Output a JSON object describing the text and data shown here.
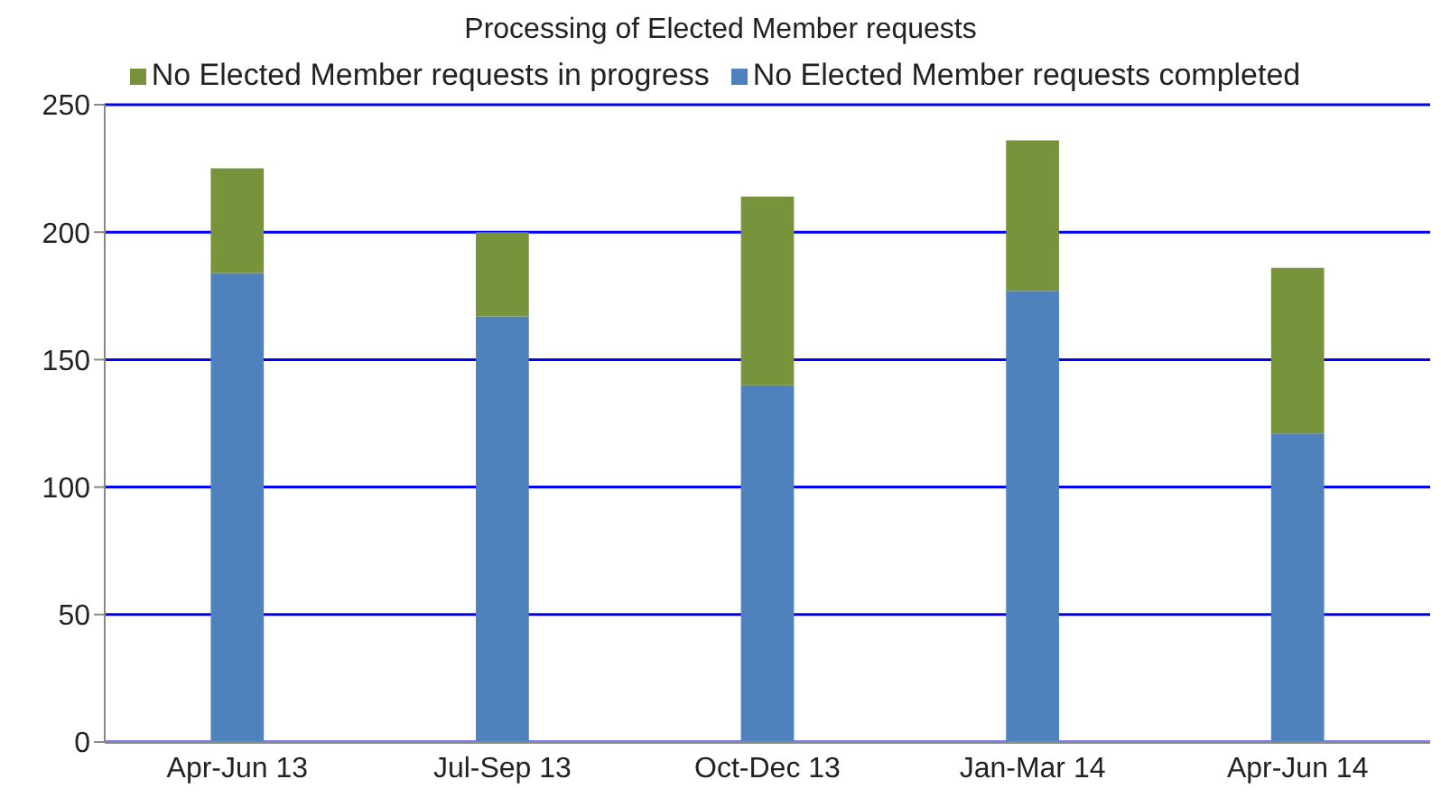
{
  "chart_data": {
    "type": "bar",
    "title": "Processing of Elected Member requests",
    "categories": [
      "Apr-Jun 13",
      "Jul-Sep 13",
      "Oct-Dec 13",
      "Jan-Mar 14",
      "Apr-Jun 14"
    ],
    "series": [
      {
        "name": "No Elected Member requests completed",
        "color": "#4f81bd",
        "values": [
          184,
          167,
          140,
          177,
          121
        ]
      },
      {
        "name": "No Elected Member requests in progress",
        "color": "#77933c",
        "values": [
          41,
          33,
          74,
          59,
          65
        ]
      }
    ],
    "stacked": true,
    "ylim": [
      0,
      250
    ],
    "yticks": [
      0,
      50,
      100,
      150,
      200,
      250
    ],
    "grid": "y",
    "legend": "top"
  }
}
